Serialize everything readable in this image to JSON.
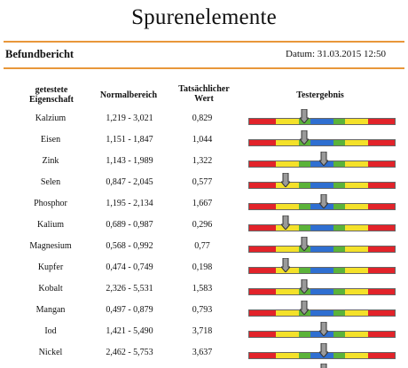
{
  "title": "Spurenelemente",
  "report": {
    "label": "Befundbericht",
    "date": "Datum: 31.03.2015 12:50"
  },
  "columns": {
    "element": "getestete\nEigenschaft",
    "normal": "Normalbereich",
    "actual": "Tatsächlicher\nWert",
    "result": "Testergebnis"
  },
  "rows": [
    {
      "name": "Kalzium",
      "range": "1,219 - 3,021",
      "value": "0,829",
      "level": 0.38
    },
    {
      "name": "Eisen",
      "range": "1,151 - 1,847",
      "value": "1,044",
      "level": 0.38
    },
    {
      "name": "Zink",
      "range": "1,143 - 1,989",
      "value": "1,322",
      "level": 0.51
    },
    {
      "name": "Selen",
      "range": "0,847 - 2,045",
      "value": "0,577",
      "level": 0.25
    },
    {
      "name": "Phosphor",
      "range": "1,195 - 2,134",
      "value": "1,667",
      "level": 0.51
    },
    {
      "name": "Kalium",
      "range": "0,689 - 0,987",
      "value": "0,296",
      "level": 0.25
    },
    {
      "name": "Magnesium",
      "range": "0,568 - 0,992",
      "value": "0,77",
      "level": 0.38
    },
    {
      "name": "Kupfer",
      "range": "0,474 - 0,749",
      "value": "0,198",
      "level": 0.25
    },
    {
      "name": "Kobalt",
      "range": "2,326 - 5,531",
      "value": "1,583",
      "level": 0.38
    },
    {
      "name": "Mangan",
      "range": "0,497 - 0,879",
      "value": "0,793",
      "level": 0.38
    },
    {
      "name": "Iod",
      "range": "1,421 - 5,490",
      "value": "3,718",
      "level": 0.51
    },
    {
      "name": "Nickel",
      "range": "2,462 - 5,753",
      "value": "3,637",
      "level": 0.51
    }
  ],
  "colors": {
    "accent_rule": "#e8973a",
    "bar_red": "#e2232a",
    "bar_yellow": "#f4e12a",
    "bar_green": "#5bb33a",
    "bar_blue": "#2f6fd1",
    "marker": "#9a9a9a"
  },
  "icons": {
    "marker": "down-arrow-marker-icon"
  }
}
